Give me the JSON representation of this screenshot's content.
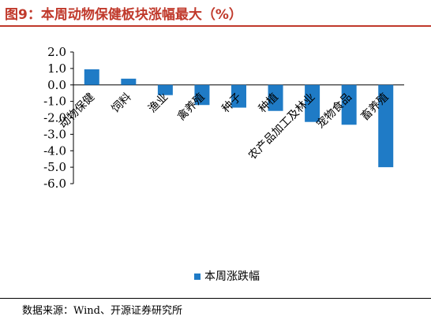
{
  "header": {
    "title": "图9：本周动物保健板块涨幅最大（%）"
  },
  "footer": {
    "source": "数据来源：Wind、开源证券研究所"
  },
  "chart_data": {
    "type": "bar",
    "categories": [
      "动物保健",
      "饲料",
      "渔业",
      "禽养殖",
      "种子",
      "种植",
      "农产品加工及林业",
      "宠物食品",
      "畜养殖"
    ],
    "series": [
      {
        "name": "本周涨跌幅",
        "values": [
          0.95,
          0.38,
          -0.62,
          -1.22,
          -1.38,
          -1.58,
          -2.25,
          -2.42,
          -5.0
        ]
      }
    ],
    "ylim": [
      -6.0,
      2.0
    ],
    "yticks": [
      "2.0",
      "1.0",
      "0.0",
      "-1.0",
      "-2.0",
      "-3.0",
      "-4.0",
      "-5.0",
      "-6.0"
    ],
    "bar_color": "#1f7bc6",
    "legend_position": "bottom"
  }
}
